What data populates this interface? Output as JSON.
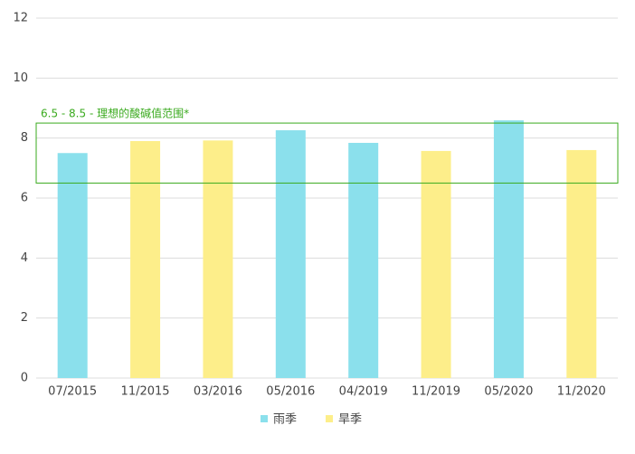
{
  "chart_data": {
    "type": "bar",
    "categories": [
      "07/2015",
      "11/2015",
      "03/2016",
      "05/2016",
      "04/2019",
      "11/2019",
      "05/2020",
      "11/2020"
    ],
    "series": [
      {
        "name": "雨季",
        "color": "#8be0ec",
        "values": [
          7.5,
          null,
          null,
          8.26,
          7.84,
          null,
          8.59,
          null
        ]
      },
      {
        "name": "旱季",
        "color": "#fdee8a",
        "values": [
          null,
          7.9,
          7.92,
          null,
          null,
          7.57,
          null,
          7.6
        ]
      }
    ],
    "ylim": [
      0,
      12
    ],
    "yticks": [
      0,
      2,
      4,
      6,
      8,
      10,
      12
    ],
    "grid": true,
    "legend": "bottom",
    "annotation": {
      "text": "6.5 - 8.5 - 理想的酸碱值范围*",
      "range": [
        6.5,
        8.5
      ],
      "color": "#3aaa1e"
    }
  }
}
